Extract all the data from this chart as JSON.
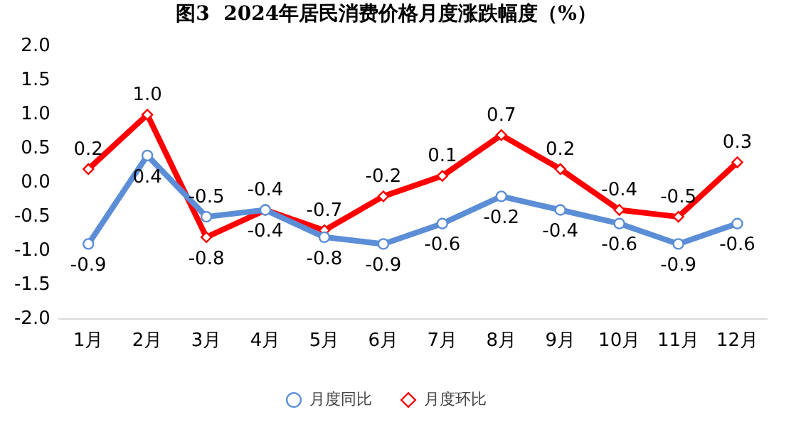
{
  "chart_data": {
    "type": "line",
    "title": "图3  2024年居民消费价格月度涨跌幅度（%）",
    "categories": [
      "1月",
      "2月",
      "3月",
      "4月",
      "5月",
      "6月",
      "7月",
      "8月",
      "9月",
      "10月",
      "11月",
      "12月"
    ],
    "series": [
      {
        "name": "月度同比",
        "color": "#5b8ed6",
        "marker": "circle",
        "values": [
          -0.9,
          0.4,
          -0.5,
          -0.4,
          -0.8,
          -0.9,
          -0.6,
          -0.2,
          -0.4,
          -0.6,
          -0.9,
          -0.6
        ],
        "value_labels": [
          "-0.9",
          "0.4",
          "-0.5",
          "-0.4",
          "-0.8",
          "-0.9",
          "-0.6",
          "-0.2",
          "-0.4",
          "-0.6",
          "-0.9",
          "-0.6"
        ]
      },
      {
        "name": "月度环比",
        "color": "#ff0000",
        "marker": "diamond",
        "values": [
          0.2,
          1.0,
          -0.8,
          -0.4,
          -0.7,
          -0.2,
          0.1,
          0.7,
          0.2,
          -0.4,
          -0.5,
          0.3
        ],
        "value_labels": [
          "0.2",
          "1.0",
          "-0.8",
          "-0.4",
          "-0.7",
          "-0.2",
          "0.1",
          "0.7",
          "0.2",
          "-0.4",
          "-0.5",
          "0.3"
        ]
      }
    ],
    "ylim": [
      -2,
      2
    ],
    "yticks": [
      {
        "value": 2,
        "label": "2.0"
      },
      {
        "value": 1.5,
        "label": "1.5"
      },
      {
        "value": 1,
        "label": "1.0"
      },
      {
        "value": 0.5,
        "label": "0.5"
      },
      {
        "value": 0,
        "label": "0.0"
      },
      {
        "value": -0.5,
        "label": "-0.5"
      },
      {
        "value": -1,
        "label": "-1.0"
      },
      {
        "value": -1.5,
        "label": "-1.5"
      },
      {
        "value": -2,
        "label": "-2.0"
      }
    ],
    "grid": false,
    "legend": "bottom",
    "line_style": "solid"
  }
}
